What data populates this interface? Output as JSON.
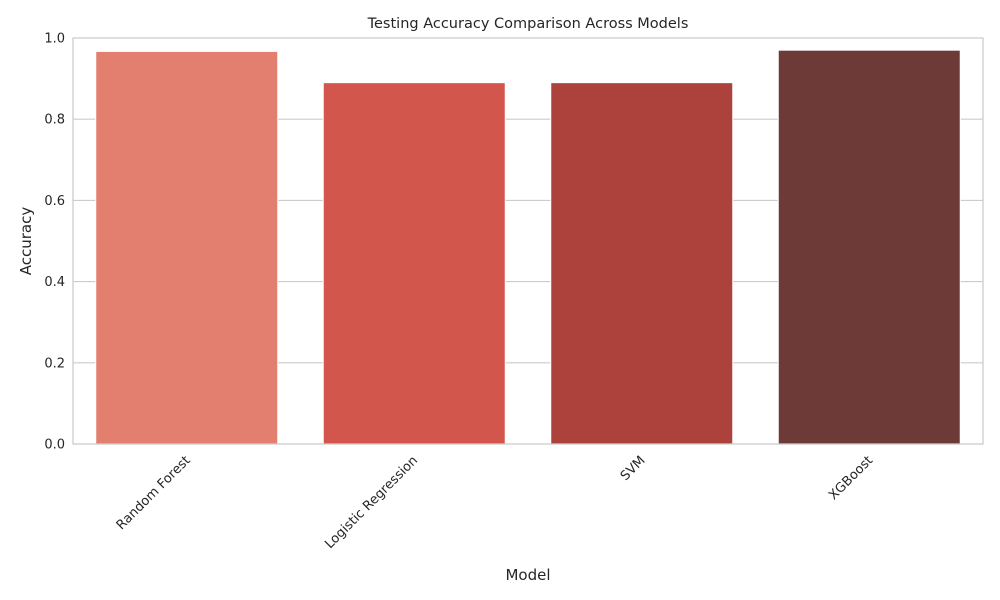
{
  "chart_data": {
    "type": "bar",
    "title": "Testing Accuracy Comparison Across Models",
    "xlabel": "Model",
    "ylabel": "Accuracy",
    "categories": [
      "Random Forest",
      "Logistic Regression",
      "SVM",
      "XGBoost"
    ],
    "values": [
      0.967,
      0.89,
      0.89,
      0.97
    ],
    "ylim": [
      0,
      1.0
    ],
    "yticks": [
      "0.0",
      "0.2",
      "0.4",
      "0.6",
      "0.8",
      "1.0"
    ],
    "grid": "horizontal",
    "legend": "none",
    "bar_colors": [
      "#e27f6e",
      "#d3564d",
      "#ad423c",
      "#6e3a38"
    ],
    "grid_color": "#cccccc",
    "spine_color": "#cccccc"
  }
}
